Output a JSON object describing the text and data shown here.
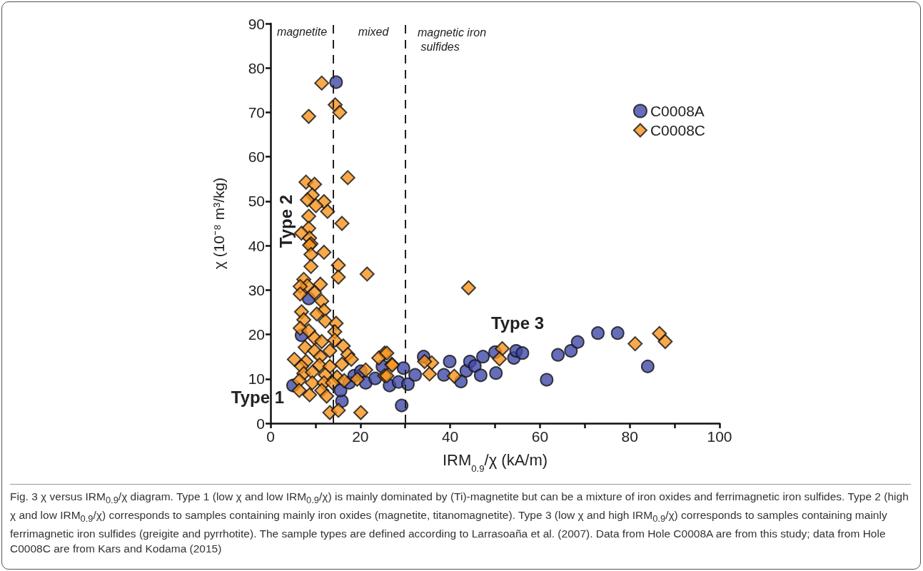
{
  "chart_data": {
    "type": "scatter",
    "xlabel": "IRM$_{0.9}$/χ (kA/m)",
    "ylabel": "χ (10⁻⁸ m³/kg)",
    "xlim": [
      0,
      100
    ],
    "xticks": [
      0,
      20,
      40,
      60,
      80,
      100
    ],
    "ylim": [
      0,
      90
    ],
    "yticks": [
      0,
      10,
      20,
      30,
      40,
      50,
      60,
      70,
      80,
      90
    ],
    "grid": false,
    "legend": "top right",
    "ref_lines": [
      {
        "axis": "x",
        "value": 14,
        "line_style": "dashed",
        "color": "#231f20"
      },
      {
        "axis": "x",
        "value": 30,
        "line_style": "dashed",
        "color": "#231f20"
      }
    ],
    "annotations": [
      "magnetite",
      "mixed",
      "magnetic iron sulfides",
      "Type 1",
      "Type 2",
      "Type 3",
      "Fig. 3 χ versus IRM$_{0.9}$/χ diagram. Type 1 (low χ and low IRM$_{0.9}$/χ) is mainly dominated by (Ti)-magnetite but can be a mixture of iron oxides and ferrimagnetic iron sulfides. Type 2 (high χ and low IRM$_{0.9}$/χ) corresponds to samples containing mainly iron oxides (magnetite, titanomagnetite). Type 3 (low χ and high IRM$_{0.9}$/χ) corresponds to samples containing mainly ferrimagnetic iron sulfides (greigite and pyrrhotite). The sample types are defined according to Larrasoaña et al. (2007). Data from Hole C0008A are from this study; data from Hole C0008C are from Kars and Kodama (2015)"
    ],
    "series": [
      {
        "name": "C0008A",
        "color": "#4049a8",
        "marker": "circle",
        "x": [
          14.6,
          5.0,
          15.9,
          8.5,
          6.9,
          15.6,
          17.5,
          18.6,
          20.1,
          21.2,
          23.3,
          24.9,
          26.5,
          29.2,
          28.5,
          29.6,
          30.6,
          32.2,
          34.1,
          38.6,
          39.9,
          42.4,
          43.6,
          44.4,
          45.5,
          46.8,
          47.3,
          50.0,
          50.2,
          54.2,
          54.7,
          56.1,
          61.5,
          64.0,
          66.9,
          68.4,
          72.9,
          77.3,
          84.0
        ],
        "values": [
          76.8,
          8.5,
          5.0,
          28.1,
          19.8,
          7.4,
          9.1,
          10.7,
          11.7,
          9.1,
          10.1,
          12.8,
          8.5,
          4.0,
          9.3,
          12.4,
          8.8,
          10.9,
          15.0,
          10.9,
          13.9,
          9.4,
          11.8,
          13.9,
          12.9,
          10.8,
          15.0,
          16.0,
          11.3,
          14.7,
          16.3,
          15.8,
          9.8,
          15.4,
          16.3,
          18.3,
          20.3,
          20.3,
          12.8
        ]
      },
      {
        "name": "C0008C",
        "color": "#f7941d",
        "marker": "diamond",
        "x": [
          11.4,
          14.4,
          15.4,
          8.5,
          17.2,
          7.9,
          9.8,
          9.3,
          8.2,
          11.9,
          10.1,
          12.7,
          8.5,
          15.9,
          8.5,
          6.9,
          8.7,
          9.0,
          8.7,
          11.9,
          9.0,
          15.1,
          9.0,
          21.5,
          15.1,
          7.4,
          8.2,
          11.1,
          6.6,
          9.8,
          6.6,
          11.4,
          6.9,
          11.9,
          7.4,
          10.3,
          12.2,
          14.6,
          6.6,
          8.5,
          14.3,
          9.8,
          11.4,
          16.2,
          7.7,
          14.3,
          9.8,
          13.2,
          17.2,
          5.3,
          11.1,
          7.9,
          18.0,
          6.9,
          10.9,
          13.2,
          15.9,
          21.2,
          7.4,
          9.3,
          12.2,
          14.8,
          19.3,
          6.4,
          9.3,
          11.9,
          13.8,
          16.4,
          25.4,
          24.1,
          27.0,
          25.4,
          6.4,
          8.7,
          11.4,
          12.5,
          13.2,
          15.1,
          20.1,
          44.1,
          81.2,
          86.6,
          87.9,
          51.6,
          51.0,
          35.9,
          35.4,
          40.9,
          34.3,
          27.1,
          25.9,
          25.9
        ],
        "values": [
          76.6,
          71.7,
          70.0,
          69.1,
          55.3,
          54.3,
          53.8,
          51.4,
          50.3,
          49.9,
          49.0,
          47.7,
          46.6,
          45.0,
          43.9,
          42.8,
          41.7,
          40.4,
          40.1,
          38.5,
          38.0,
          35.6,
          35.3,
          33.6,
          32.9,
          32.4,
          31.0,
          31.3,
          30.8,
          29.4,
          29.1,
          27.5,
          25.1,
          25.4,
          23.3,
          24.6,
          23.0,
          22.5,
          21.4,
          20.8,
          20.6,
          19.2,
          18.4,
          17.4,
          17.1,
          18.7,
          16.3,
          16.3,
          15.5,
          14.4,
          15.0,
          13.9,
          14.4,
          12.8,
          13.1,
          12.8,
          13.3,
          12.0,
          11.2,
          11.5,
          10.9,
          10.4,
          9.9,
          9.6,
          9.1,
          9.1,
          9.1,
          9.6,
          15.8,
          14.7,
          13.3,
          10.7,
          7.4,
          6.4,
          7.4,
          6.1,
          2.4,
          2.9,
          2.4,
          30.5,
          17.9,
          20.2,
          18.4,
          16.8,
          14.5,
          13.6,
          11.1,
          10.6,
          13.9,
          13.1,
          15.8,
          10.7
        ]
      }
    ]
  }
}
